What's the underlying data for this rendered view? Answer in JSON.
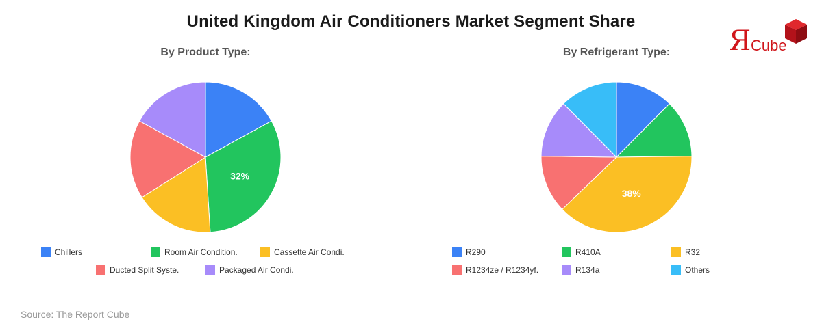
{
  "title": "United Kingdom Air Conditioners Market Segment Share",
  "source": "Source: The Report Cube",
  "logo": {
    "mark": "Я",
    "text": "Cube",
    "color": "#d0161b"
  },
  "chart_data": [
    {
      "type": "pie",
      "title": "By Product Type:",
      "labels": [
        "Chillers",
        "Room Air Condition.",
        "Cassette Air Condi.",
        "Ducted Split Syste.",
        "Packaged Air Condi."
      ],
      "values": [
        17,
        32,
        17,
        17,
        17
      ],
      "colors": [
        "#3b82f6",
        "#22c55e",
        "#fbbf24",
        "#f87171",
        "#a78bfa"
      ],
      "data_labels": [
        "",
        "32%",
        "",
        "",
        ""
      ],
      "start_angle_deg": 0,
      "legend": "bottom"
    },
    {
      "type": "pie",
      "title": "By Refrigerant Type:",
      "labels": [
        "R290",
        "R410A",
        "R32",
        "R1234ze / R1234yf.",
        "R134a",
        "Others"
      ],
      "values": [
        12.4,
        12.4,
        38,
        12.4,
        12.4,
        12.4
      ],
      "colors": [
        "#3b82f6",
        "#22c55e",
        "#fbbf24",
        "#f87171",
        "#a78bfa",
        "#38bdf8"
      ],
      "data_labels": [
        "",
        "",
        "38%",
        "",
        "",
        ""
      ],
      "start_angle_deg": 0,
      "legend": "bottom"
    }
  ]
}
